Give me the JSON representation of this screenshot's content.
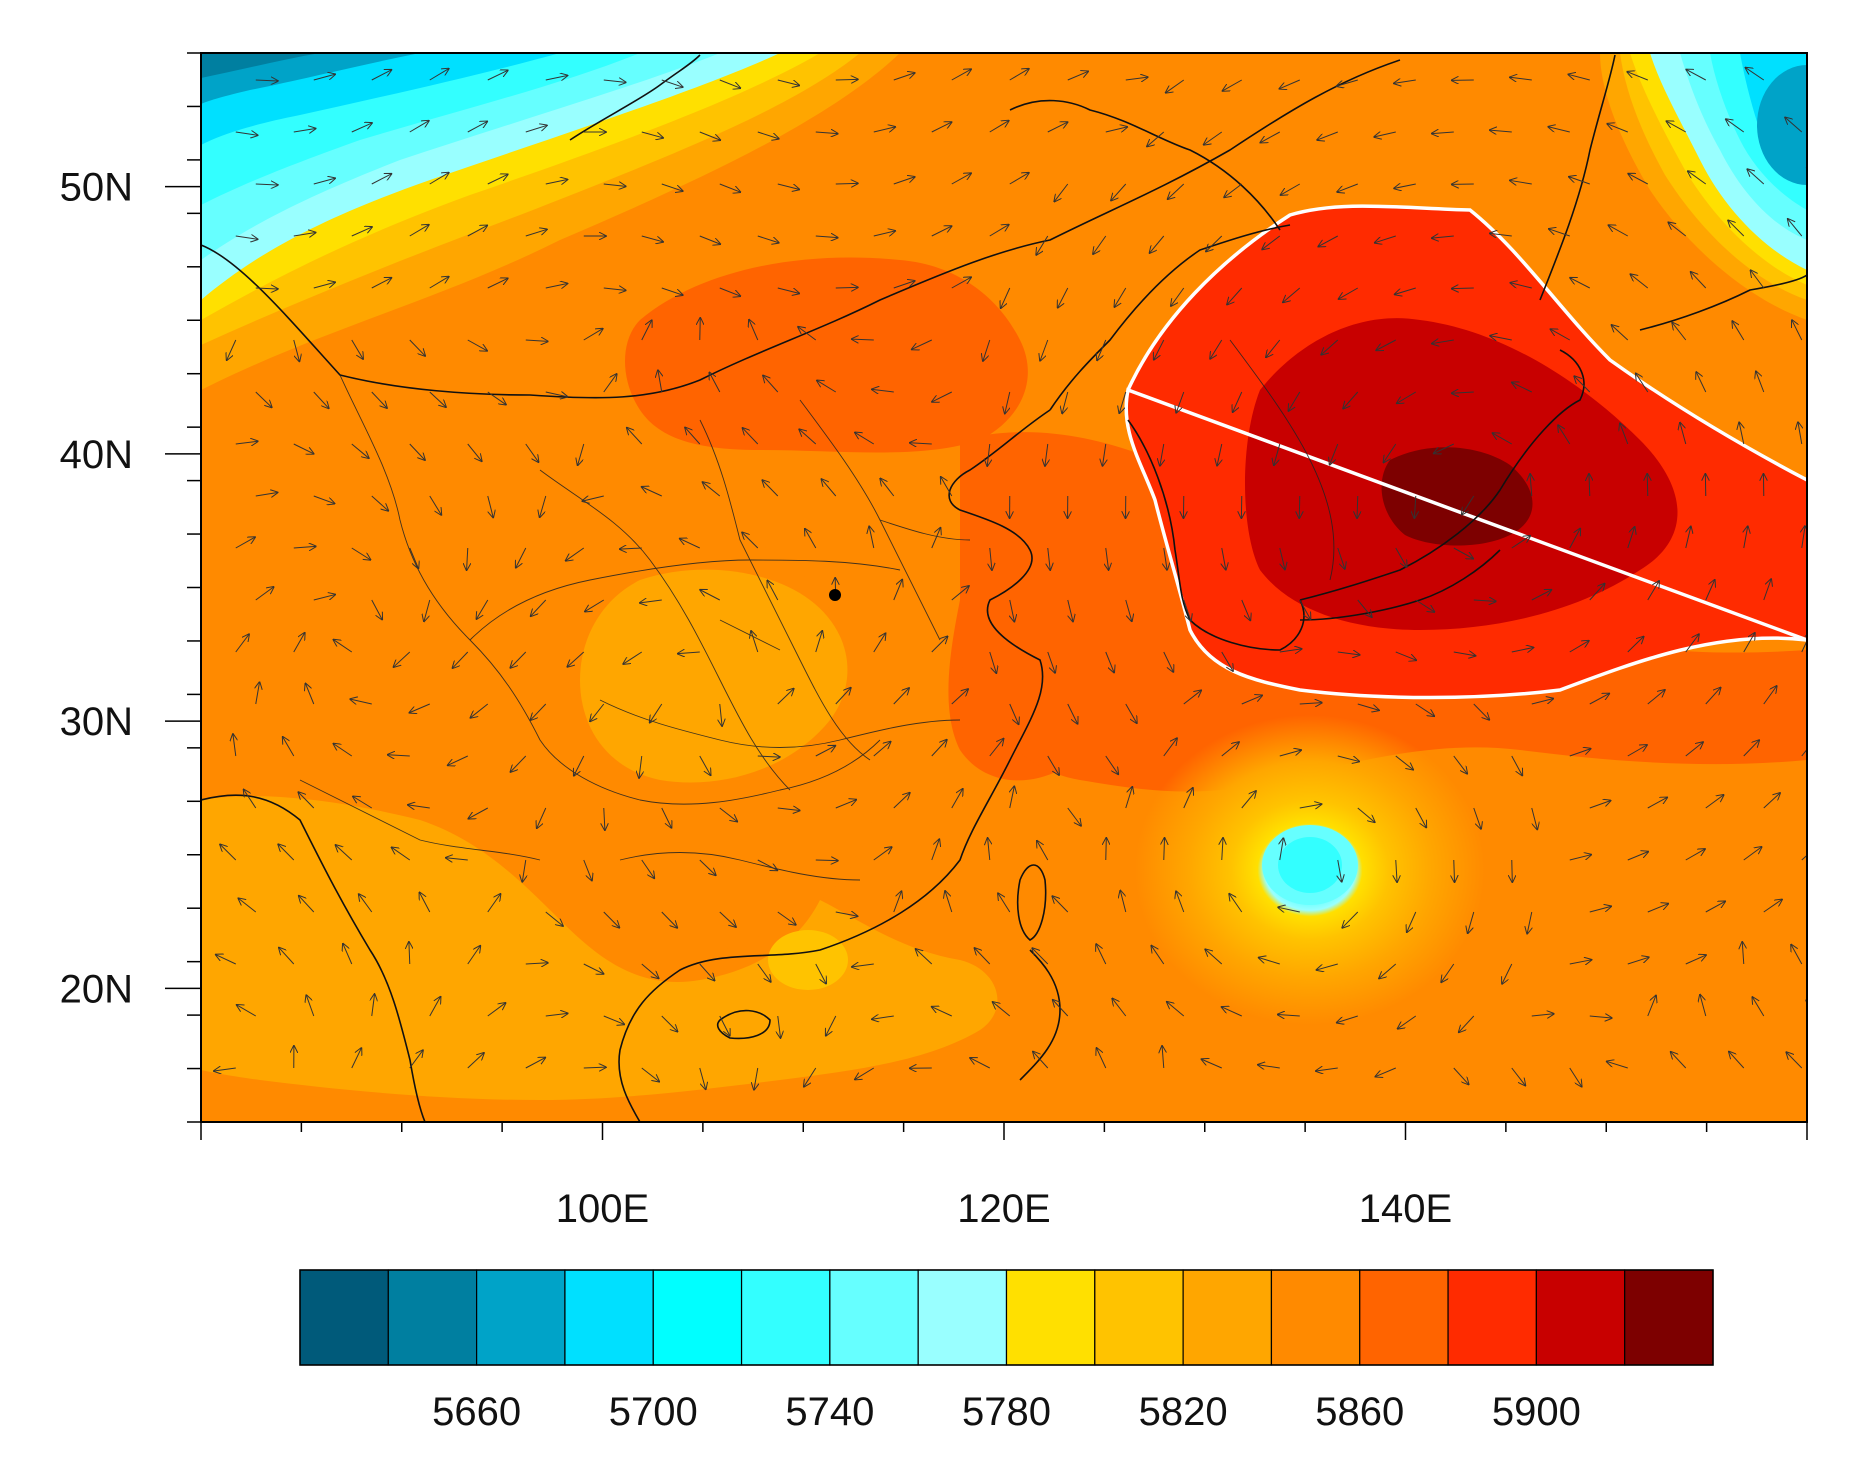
{
  "map": {
    "lon_range": [
      80,
      160
    ],
    "lat_range": [
      15,
      55
    ],
    "x_ticks": [
      {
        "label": "100E"
      },
      {
        "label": "120E"
      },
      {
        "label": "140E"
      }
    ],
    "y_ticks": [
      {
        "label": "50N"
      },
      {
        "label": "40N"
      },
      {
        "label": "30N"
      },
      {
        "label": "20N"
      }
    ],
    "contour_field": "geopotential height",
    "highlight_contour": {
      "level": 5880,
      "color": "#ffffff"
    },
    "features": [
      "coastlines",
      "national borders",
      "provincial borders",
      "wind vectors"
    ]
  },
  "colorbar": {
    "colors": [
      "#005a7a",
      "#007fa0",
      "#00a3c8",
      "#00e0ff",
      "#00ffff",
      "#33ffff",
      "#66ffff",
      "#99ffff",
      "#ffe000",
      "#ffc300",
      "#ffa600",
      "#ff8a00",
      "#ff6400",
      "#ff2b00",
      "#c80000",
      "#7d0000"
    ],
    "labels": [
      "5660",
      "5700",
      "5740",
      "5780",
      "5820",
      "5860",
      "5900"
    ]
  }
}
